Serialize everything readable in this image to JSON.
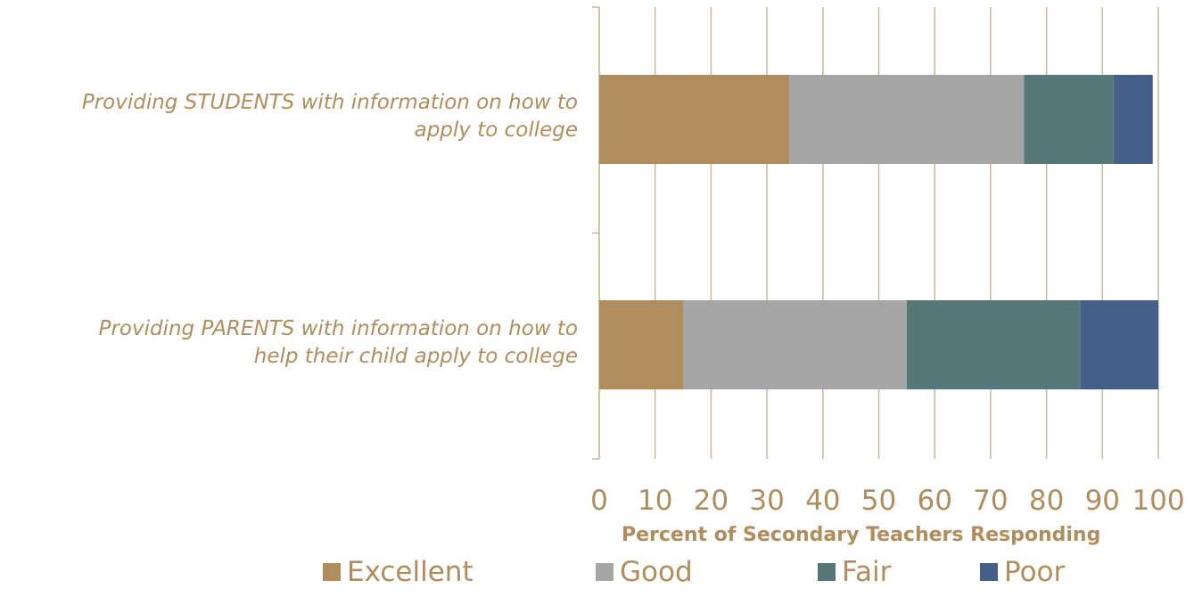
{
  "chart_data": {
    "type": "bar",
    "orientation": "horizontal",
    "stacked": true,
    "categories": [
      "Providing STUDENTS with information on how to apply to college",
      "Providing PARENTS with information on how to help their child apply to college"
    ],
    "category_lines": [
      [
        "Providing STUDENTS with information on how to",
        "apply to college"
      ],
      [
        "Providing PARENTS with information on how to",
        "help their child apply to college"
      ]
    ],
    "series": [
      {
        "name": "Excellent",
        "values": [
          34,
          15
        ],
        "color": "#b08d5c"
      },
      {
        "name": "Good",
        "values": [
          42,
          40
        ],
        "color": "#a5a5a5"
      },
      {
        "name": "Fair",
        "values": [
          16,
          31
        ],
        "color": "#577878"
      },
      {
        "name": "Poor",
        "values": [
          7,
          14
        ],
        "color": "#446088"
      }
    ],
    "xlabel": "Percent of Secondary Teachers Responding",
    "xlim": [
      0,
      100
    ],
    "xticks": [
      "0",
      "10",
      "20",
      "30",
      "40",
      "50",
      "60",
      "70",
      "80",
      "90",
      "100"
    ],
    "grid": true,
    "legend_position": "bottom"
  },
  "colors": {
    "axis_text": "#b08d5c",
    "grid": "#c9b79a"
  }
}
